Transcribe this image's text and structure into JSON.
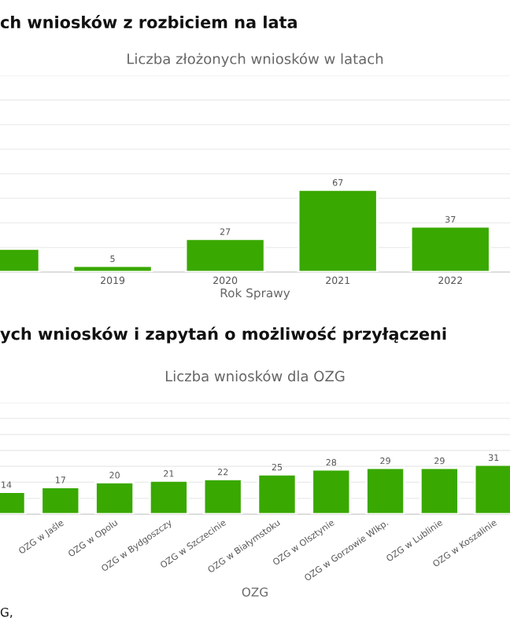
{
  "chart_data": [
    {
      "type": "bar",
      "title": "Liczba złożonych wniosków w latach",
      "xlabel": "Rok Sprawy",
      "annotations": [
        "ch wniosków z rozbiciem na lata"
      ],
      "categories": [
        null,
        "2019",
        "2020",
        "2021",
        "2022"
      ],
      "values": [
        19,
        5,
        27,
        67,
        37
      ],
      "value_labels": [
        null,
        "5",
        "27",
        "67",
        "37"
      ],
      "color": "#39a800",
      "ylim": [
        0,
        160
      ],
      "yticks": [
        {
          "value": 0,
          "label": null
        },
        {
          "value": 20,
          "label": null
        },
        {
          "value": 40,
          "label": null
        },
        {
          "value": 60,
          "label": null
        },
        {
          "value": 80,
          "label": null
        },
        {
          "value": 100,
          "label": null
        },
        {
          "value": 120,
          "label": null
        },
        {
          "value": 140,
          "label": null
        },
        {
          "value": 160,
          "label": null
        }
      ],
      "grid": "y",
      "tick_labels": "x"
    },
    {
      "type": "bar",
      "title": "Liczba wniosków dla OZG",
      "xlabel": "OZG",
      "annotations": [
        "ych wniosków i zapytań o możliwość przyłączeni",
        "G,"
      ],
      "categories": [
        null,
        "OZG w Jaśle",
        "OZG w Opolu",
        "OZG w Bydgoszczy",
        "OZG w Szczecinie",
        "OZG w Białymstoku",
        "OZG w Olsztynie",
        "OZG w Gorzowie Wlkp.",
        "OZG w Lublinie",
        "OZG w Koszalinie"
      ],
      "values": [
        14,
        17,
        20,
        21,
        22,
        25,
        28,
        29,
        29,
        31
      ],
      "data_labels": true,
      "color": "#39a800",
      "ylim": [
        0,
        70
      ],
      "yticks": [
        {
          "value": 0,
          "label": null
        },
        {
          "value": 10,
          "label": null
        },
        {
          "value": 20,
          "label": null
        },
        {
          "value": 30,
          "label": null
        },
        {
          "value": 40,
          "label": null
        },
        {
          "value": 50,
          "label": null
        },
        {
          "value": 60,
          "label": null
        },
        {
          "value": 70,
          "label": null
        }
      ],
      "grid": "y",
      "tick_labels": "x"
    }
  ]
}
